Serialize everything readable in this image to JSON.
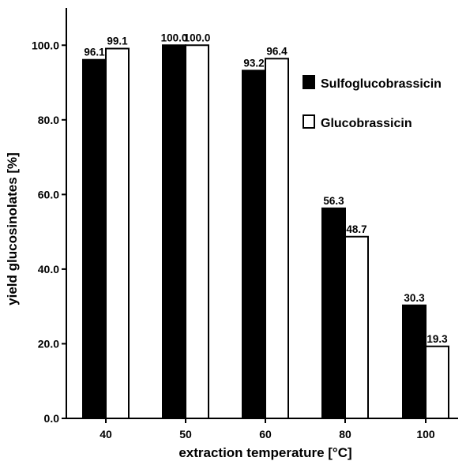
{
  "chart_data": {
    "type": "bar",
    "categories": [
      "40",
      "50",
      "60",
      "80",
      "100"
    ],
    "series": [
      {
        "name": "Sulfoglucobrassicin",
        "values": [
          96.1,
          100.0,
          93.2,
          56.3,
          30.3
        ],
        "color": "#000000"
      },
      {
        "name": "Glucobrassicin",
        "values": [
          99.1,
          100.0,
          96.4,
          48.7,
          19.3
        ],
        "color": "#ffffff"
      }
    ],
    "data_labels": [
      [
        "96.1",
        "100.0",
        "93.2",
        "56.3",
        "30.3"
      ],
      [
        "99.1",
        "100.0",
        "96.4",
        "48.7",
        "19.3"
      ]
    ],
    "y_ticks": [
      "0.0",
      "20.0",
      "40.0",
      "60.0",
      "80.0",
      "100.0"
    ],
    "xlabel": "extraction temperature [°C]",
    "ylabel": "yield glucosinolates [%]",
    "ylim": [
      0,
      110
    ],
    "legend_position": "right",
    "grid": false
  }
}
